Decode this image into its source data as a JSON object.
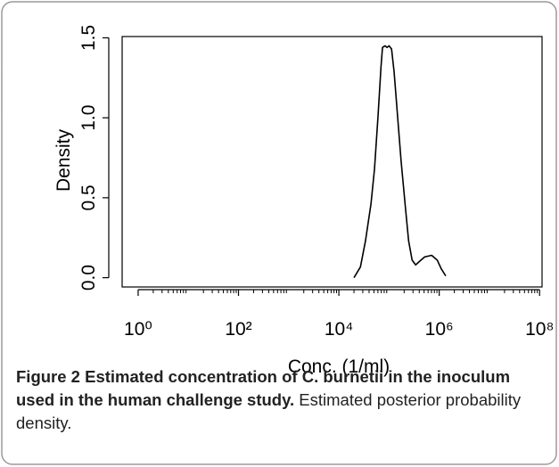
{
  "chart_data": {
    "type": "line",
    "xlabel": "Conc. (1/ml)",
    "ylabel": "Density",
    "xscale": "log",
    "minor_ticks": true,
    "color": "#000000",
    "xlim": [
      0.48,
      112000000
    ],
    "ylim": [
      -0.058,
      1.508
    ],
    "xticks": [
      {
        "value": 1,
        "label": "10⁰"
      },
      {
        "value": 100,
        "label": "10²"
      },
      {
        "value": 10000,
        "label": "10⁴"
      },
      {
        "value": 1000000,
        "label": "10⁶"
      },
      {
        "value": 100000000,
        "label": "10⁸"
      }
    ],
    "yticks": [
      {
        "value": 0,
        "label": "0.0"
      },
      {
        "value": 0.5,
        "label": "0.5"
      },
      {
        "value": 1,
        "label": "1.0"
      },
      {
        "value": 1.5,
        "label": "1.5"
      }
    ],
    "x": [
      20000,
      26900,
      33900,
      43600,
      51300,
      60300,
      69200,
      74100,
      83200,
      91200,
      100000,
      112200,
      125900,
      147900,
      173800,
      208900,
      245500,
      288400,
      338800,
      398100,
      512900,
      707900,
      912000,
      1096000,
      1349000
    ],
    "values": [
      0,
      0.067,
      0.23,
      0.46,
      0.68,
      1.01,
      1.32,
      1.44,
      1.45,
      1.44,
      1.45,
      1.43,
      1.29,
      1.01,
      0.73,
      0.46,
      0.23,
      0.11,
      0.08,
      0.1,
      0.13,
      0.14,
      0.11,
      0.056,
      0.011
    ],
    "caption_title": "Figure 2 Estimated concentration of C. burnetii in the inoculum used in the human challenge study.",
    "caption": "Estimated posterior probability density."
  }
}
